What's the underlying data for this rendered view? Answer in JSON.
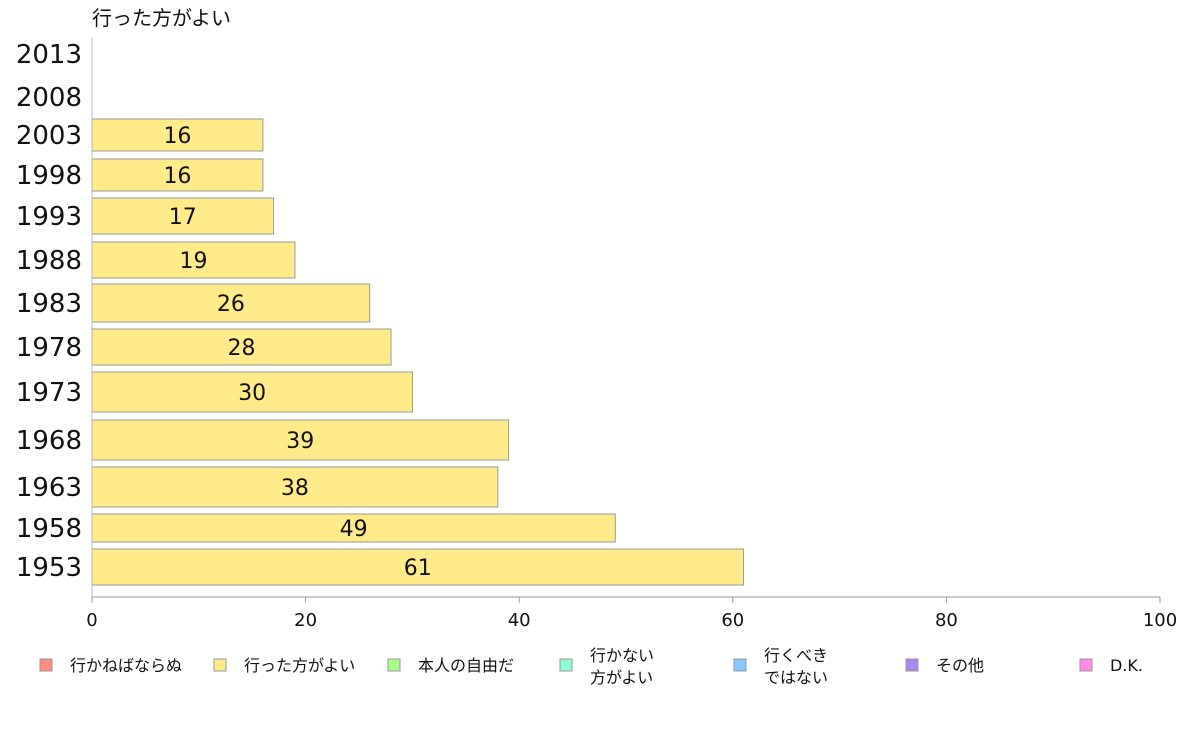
{
  "chart_data": {
    "type": "bar",
    "orientation": "horizontal",
    "title": "行った方がよい",
    "categories": [
      "2013",
      "2008",
      "2003",
      "1998",
      "1993",
      "1988",
      "1983",
      "1978",
      "1973",
      "1968",
      "1963",
      "1958",
      "1953"
    ],
    "series": [
      {
        "name": "行った方がよい",
        "values": [
          null,
          null,
          16,
          16,
          17,
          19,
          26,
          28,
          30,
          39,
          38,
          49,
          61
        ]
      }
    ],
    "xlim": [
      0,
      100
    ],
    "xticks": [
      "0",
      "20",
      "40",
      "60",
      "80",
      "100"
    ],
    "bar_color": "#FFEB8A",
    "legend_position": "bottom",
    "legend": [
      {
        "lines": [
          "行かねばならぬ"
        ],
        "color": "#FF8C7F"
      },
      {
        "lines": [
          "行った方がよい"
        ],
        "color": "#FFEB8A"
      },
      {
        "lines": [
          "本人の自由だ"
        ],
        "color": "#A6FF8A"
      },
      {
        "lines": [
          "行かない",
          "方がよい"
        ],
        "color": "#8AFFD2"
      },
      {
        "lines": [
          "行くべき",
          "ではない"
        ],
        "color": "#8AC8FF"
      },
      {
        "lines": [
          "その他"
        ],
        "color": "#A98AF5"
      },
      {
        "lines": [
          "D.K."
        ],
        "color": "#FF8AE8"
      }
    ]
  }
}
